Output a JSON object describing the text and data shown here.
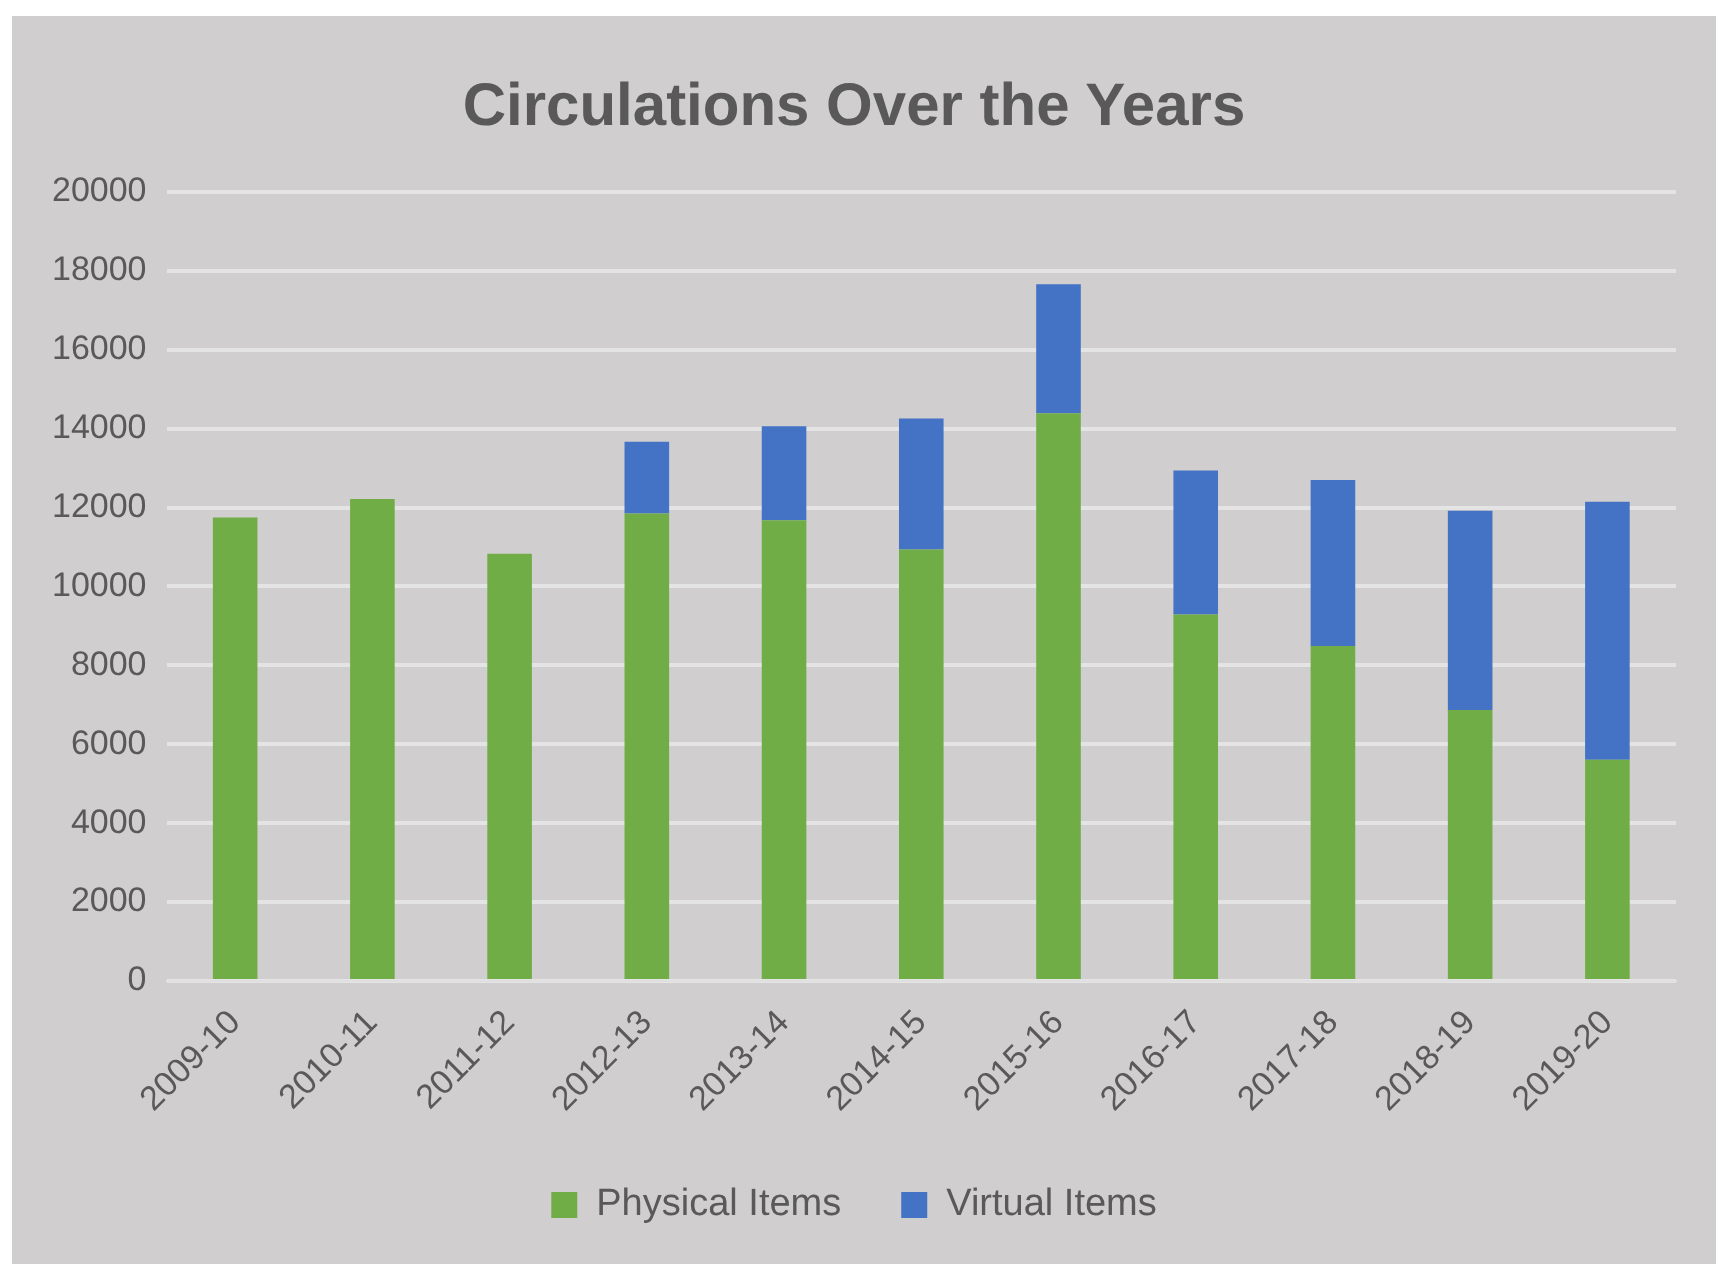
{
  "chart_data": {
    "type": "bar",
    "title": "Circulations Over the Years",
    "categories": [
      "2009-10",
      "2010-11",
      "2011-12",
      "2012-13",
      "2013-14",
      "2014-15",
      "2015-16",
      "2016-17",
      "2017-18",
      "2018-19",
      "2019-20"
    ],
    "stacked": true,
    "series": [
      {
        "name": "Physical Items",
        "color": "#70ad47",
        "values": [
          11750,
          12220,
          10830,
          11850,
          11680,
          10940,
          14390,
          9290,
          8490,
          6870,
          5610
        ]
      },
      {
        "name": "Virtual Items",
        "color": "#4472c4",
        "values": [
          null,
          null,
          null,
          1820,
          2380,
          3320,
          3270,
          3650,
          4210,
          5050,
          6540
        ]
      }
    ],
    "ylim": [
      0,
      20000
    ],
    "yticks": [
      0,
      2000,
      4000,
      6000,
      8000,
      10000,
      12000,
      14000,
      16000,
      18000,
      20000
    ],
    "grid": "y",
    "legend": "bottom"
  }
}
